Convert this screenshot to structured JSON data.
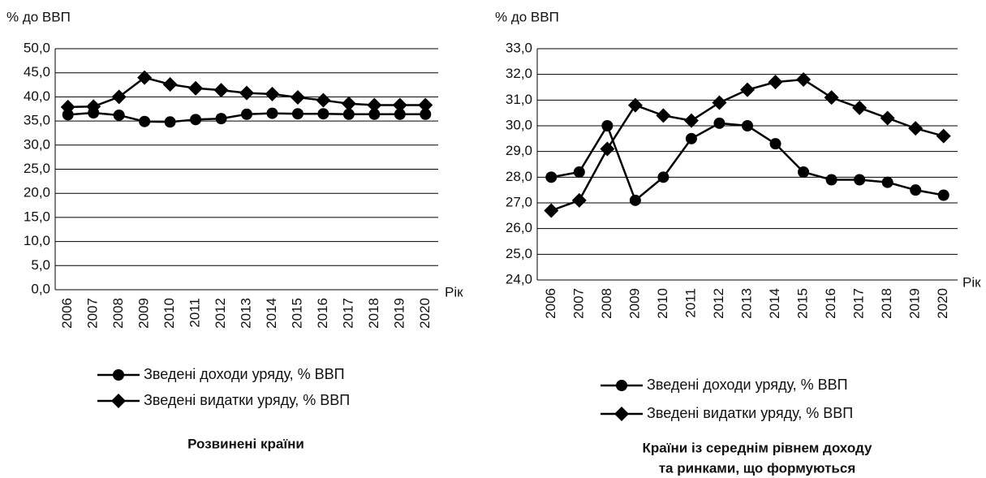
{
  "chart_data": [
    {
      "type": "line",
      "ylabel": "% до ВВП",
      "xlabel": "Рік",
      "title": [
        "Розвинені країни"
      ],
      "categories": [
        "2006",
        "2007",
        "2008",
        "2009",
        "2010",
        "2011",
        "2012",
        "2013",
        "2014",
        "2015",
        "2016",
        "2017",
        "2018",
        "2019",
        "2020"
      ],
      "ylim": [
        0,
        50
      ],
      "yticks": [
        {
          "value": 0,
          "label": "0,0"
        },
        {
          "value": 5,
          "label": "5,0"
        },
        {
          "value": 10,
          "label": "10,0"
        },
        {
          "value": 15,
          "label": "15,0"
        },
        {
          "value": 20,
          "label": "20,0"
        },
        {
          "value": 25,
          "label": "25,0"
        },
        {
          "value": 30,
          "label": "30,0"
        },
        {
          "value": 35,
          "label": "35,0"
        },
        {
          "value": 40,
          "label": "40,0"
        },
        {
          "value": 45,
          "label": "45,0"
        },
        {
          "value": 50,
          "label": "50,0"
        }
      ],
      "grid": true,
      "series": [
        {
          "name": "Зведені доходи уряду, % ВВП",
          "color": "#000000",
          "marker": "circle",
          "values": [
            36.3,
            36.7,
            36.2,
            34.9,
            34.8,
            35.3,
            35.5,
            36.4,
            36.6,
            36.5,
            36.5,
            36.4,
            36.4,
            36.4,
            36.4
          ]
        },
        {
          "name": "Зведені видатки уряду, % ВВП",
          "color": "#000000",
          "marker": "diamond",
          "values": [
            37.9,
            38.0,
            40.0,
            44.0,
            42.6,
            41.8,
            41.4,
            40.8,
            40.6,
            39.9,
            39.3,
            38.6,
            38.3,
            38.3,
            38.3
          ]
        }
      ]
    },
    {
      "type": "line",
      "ylabel": "% до ВВП",
      "xlabel": "Рік",
      "title": [
        "Країни із середнім рівнем доходу",
        "та ринками, що формуються"
      ],
      "categories": [
        "2006",
        "2007",
        "2008",
        "2009",
        "2010",
        "2011",
        "2012",
        "2013",
        "2014",
        "2015",
        "2016",
        "2017",
        "2018",
        "2019",
        "2020"
      ],
      "ylim": [
        24,
        33
      ],
      "yticks": [
        {
          "value": 24,
          "label": "24,0"
        },
        {
          "value": 25,
          "label": "25,0"
        },
        {
          "value": 26,
          "label": "26,0"
        },
        {
          "value": 27,
          "label": "27,0"
        },
        {
          "value": 28,
          "label": "28,0"
        },
        {
          "value": 29,
          "label": "29,0"
        },
        {
          "value": 30,
          "label": "30,0"
        },
        {
          "value": 31,
          "label": "31,0"
        },
        {
          "value": 32,
          "label": "32,0"
        },
        {
          "value": 33,
          "label": "33,0"
        }
      ],
      "grid": true,
      "series": [
        {
          "name": "Зведені доходи уряду, % ВВП",
          "color": "#000000",
          "marker": "circle",
          "values": [
            28.0,
            28.2,
            30.0,
            27.1,
            28.0,
            29.5,
            30.1,
            30.0,
            29.3,
            28.2,
            27.9,
            27.9,
            27.8,
            27.5,
            27.3
          ]
        },
        {
          "name": "Зведені видатки уряду, % ВВП",
          "color": "#000000",
          "marker": "diamond",
          "values": [
            26.7,
            27.1,
            29.1,
            30.8,
            30.4,
            30.2,
            30.9,
            31.4,
            31.7,
            31.8,
            31.1,
            30.7,
            30.3,
            29.9,
            29.6
          ]
        }
      ]
    }
  ]
}
